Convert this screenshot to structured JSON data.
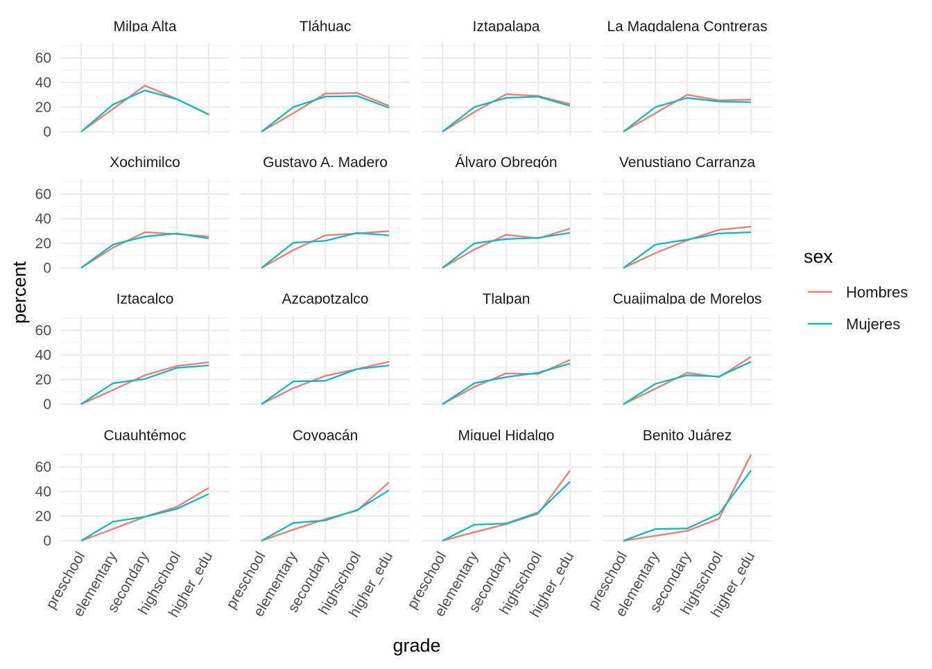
{
  "chart_data": {
    "type": "line",
    "facet_layout": "4x4 grid",
    "xlabel": "grade",
    "ylabel": "percent",
    "categories": [
      "preschool",
      "elementary",
      "secondary",
      "highschool",
      "higher_edu"
    ],
    "ylim": [
      0,
      70
    ],
    "yticks": [
      0,
      20,
      40,
      60
    ],
    "grid": true,
    "legend": {
      "title": "sex",
      "placement": "right",
      "entries": [
        {
          "name": "Hombres",
          "color": "#F8766D"
        },
        {
          "name": "Mujeres",
          "color": "#00BFC4"
        }
      ]
    },
    "panels": [
      {
        "title": "Milpa Alta",
        "series": [
          {
            "name": "Hombres",
            "values": [
              0,
              18.5,
              37.5,
              26.5,
              14
            ]
          },
          {
            "name": "Mujeres",
            "values": [
              0,
              22,
              33.5,
              26.5,
              14
            ]
          }
        ]
      },
      {
        "title": "Tláhuac",
        "series": [
          {
            "name": "Hombres",
            "values": [
              0,
              15,
              31,
              31.5,
              21
            ]
          },
          {
            "name": "Mujeres",
            "values": [
              0,
              20,
              28.5,
              29,
              19.5
            ]
          }
        ]
      },
      {
        "title": "Iztapalapa",
        "series": [
          {
            "name": "Hombres",
            "values": [
              0,
              16,
              30.5,
              29,
              22.5
            ]
          },
          {
            "name": "Mujeres",
            "values": [
              0,
              20,
              27.5,
              28.5,
              21
            ]
          }
        ]
      },
      {
        "title": "La Magdalena Contreras",
        "series": [
          {
            "name": "Hombres",
            "values": [
              0,
              15,
              30,
              25.5,
              26
            ]
          },
          {
            "name": "Mujeres",
            "values": [
              0,
              20,
              27.5,
              24.5,
              24
            ]
          }
        ]
      },
      {
        "title": "Xochimilco",
        "series": [
          {
            "name": "Hombres",
            "values": [
              0,
              16.5,
              29,
              27.5,
              25.5
            ]
          },
          {
            "name": "Mujeres",
            "values": [
              0,
              19,
              25.5,
              28,
              24
            ]
          }
        ]
      },
      {
        "title": "Gustavo A. Madero",
        "series": [
          {
            "name": "Hombres",
            "values": [
              0,
              14.5,
              26.5,
              28,
              30
            ]
          },
          {
            "name": "Mujeres",
            "values": [
              0,
              20.5,
              22,
              28.5,
              26.5
            ]
          }
        ]
      },
      {
        "title": "Álvaro Obregón",
        "series": [
          {
            "name": "Hombres",
            "values": [
              0,
              15,
              27,
              24,
              32
            ]
          },
          {
            "name": "Mujeres",
            "values": [
              0,
              20,
              23.5,
              24.5,
              28.5
            ]
          }
        ]
      },
      {
        "title": "Venustiano Carranza",
        "series": [
          {
            "name": "Hombres",
            "values": [
              0,
              12,
              22.5,
              31,
              33.5
            ]
          },
          {
            "name": "Mujeres",
            "values": [
              0,
              19,
              23,
              28,
              29
            ]
          }
        ]
      },
      {
        "title": "Iztacalco",
        "series": [
          {
            "name": "Hombres",
            "values": [
              0,
              11.5,
              23.5,
              31,
              34
            ]
          },
          {
            "name": "Mujeres",
            "values": [
              0,
              17,
              20.5,
              29.5,
              31.5
            ]
          }
        ]
      },
      {
        "title": "Azcapotzalco",
        "series": [
          {
            "name": "Hombres",
            "values": [
              0,
              13,
              23,
              28.5,
              34.5
            ]
          },
          {
            "name": "Mujeres",
            "values": [
              0,
              18.5,
              19,
              28.5,
              31.5
            ]
          }
        ]
      },
      {
        "title": "Tlalpan",
        "series": [
          {
            "name": "Hombres",
            "values": [
              0,
              14,
              25,
              24.5,
              36
            ]
          },
          {
            "name": "Mujeres",
            "values": [
              0,
              17,
              22,
              25.5,
              33
            ]
          }
        ]
      },
      {
        "title": "Cuajimalpa de Morelos",
        "series": [
          {
            "name": "Hombres",
            "values": [
              0,
              12.5,
              25.5,
              22,
              38.5
            ]
          },
          {
            "name": "Mujeres",
            "values": [
              0,
              16.5,
              23.5,
              22.5,
              34.5
            ]
          }
        ]
      },
      {
        "title": "Cuauhtémoc",
        "series": [
          {
            "name": "Hombres",
            "values": [
              0,
              9.5,
              19.5,
              27.5,
              43
            ]
          },
          {
            "name": "Mujeres",
            "values": [
              0,
              15.5,
              19.5,
              26,
              38
            ]
          }
        ]
      },
      {
        "title": "Coyoacán",
        "series": [
          {
            "name": "Hombres",
            "values": [
              0,
              9,
              17.5,
              24.5,
              47.5
            ]
          },
          {
            "name": "Mujeres",
            "values": [
              0,
              14.5,
              16.5,
              25,
              41
            ]
          }
        ]
      },
      {
        "title": "Miguel Hidalgo",
        "series": [
          {
            "name": "Hombres",
            "values": [
              0,
              7,
              13.5,
              22,
              57
            ]
          },
          {
            "name": "Mujeres",
            "values": [
              0,
              13,
              14,
              23,
              48
            ]
          }
        ]
      },
      {
        "title": "Benito Juárez",
        "series": [
          {
            "name": "Hombres",
            "values": [
              0,
              4,
              8,
              18,
              70
            ]
          },
          {
            "name": "Mujeres",
            "values": [
              0,
              9.5,
              10,
              22,
              57
            ]
          }
        ]
      }
    ]
  }
}
